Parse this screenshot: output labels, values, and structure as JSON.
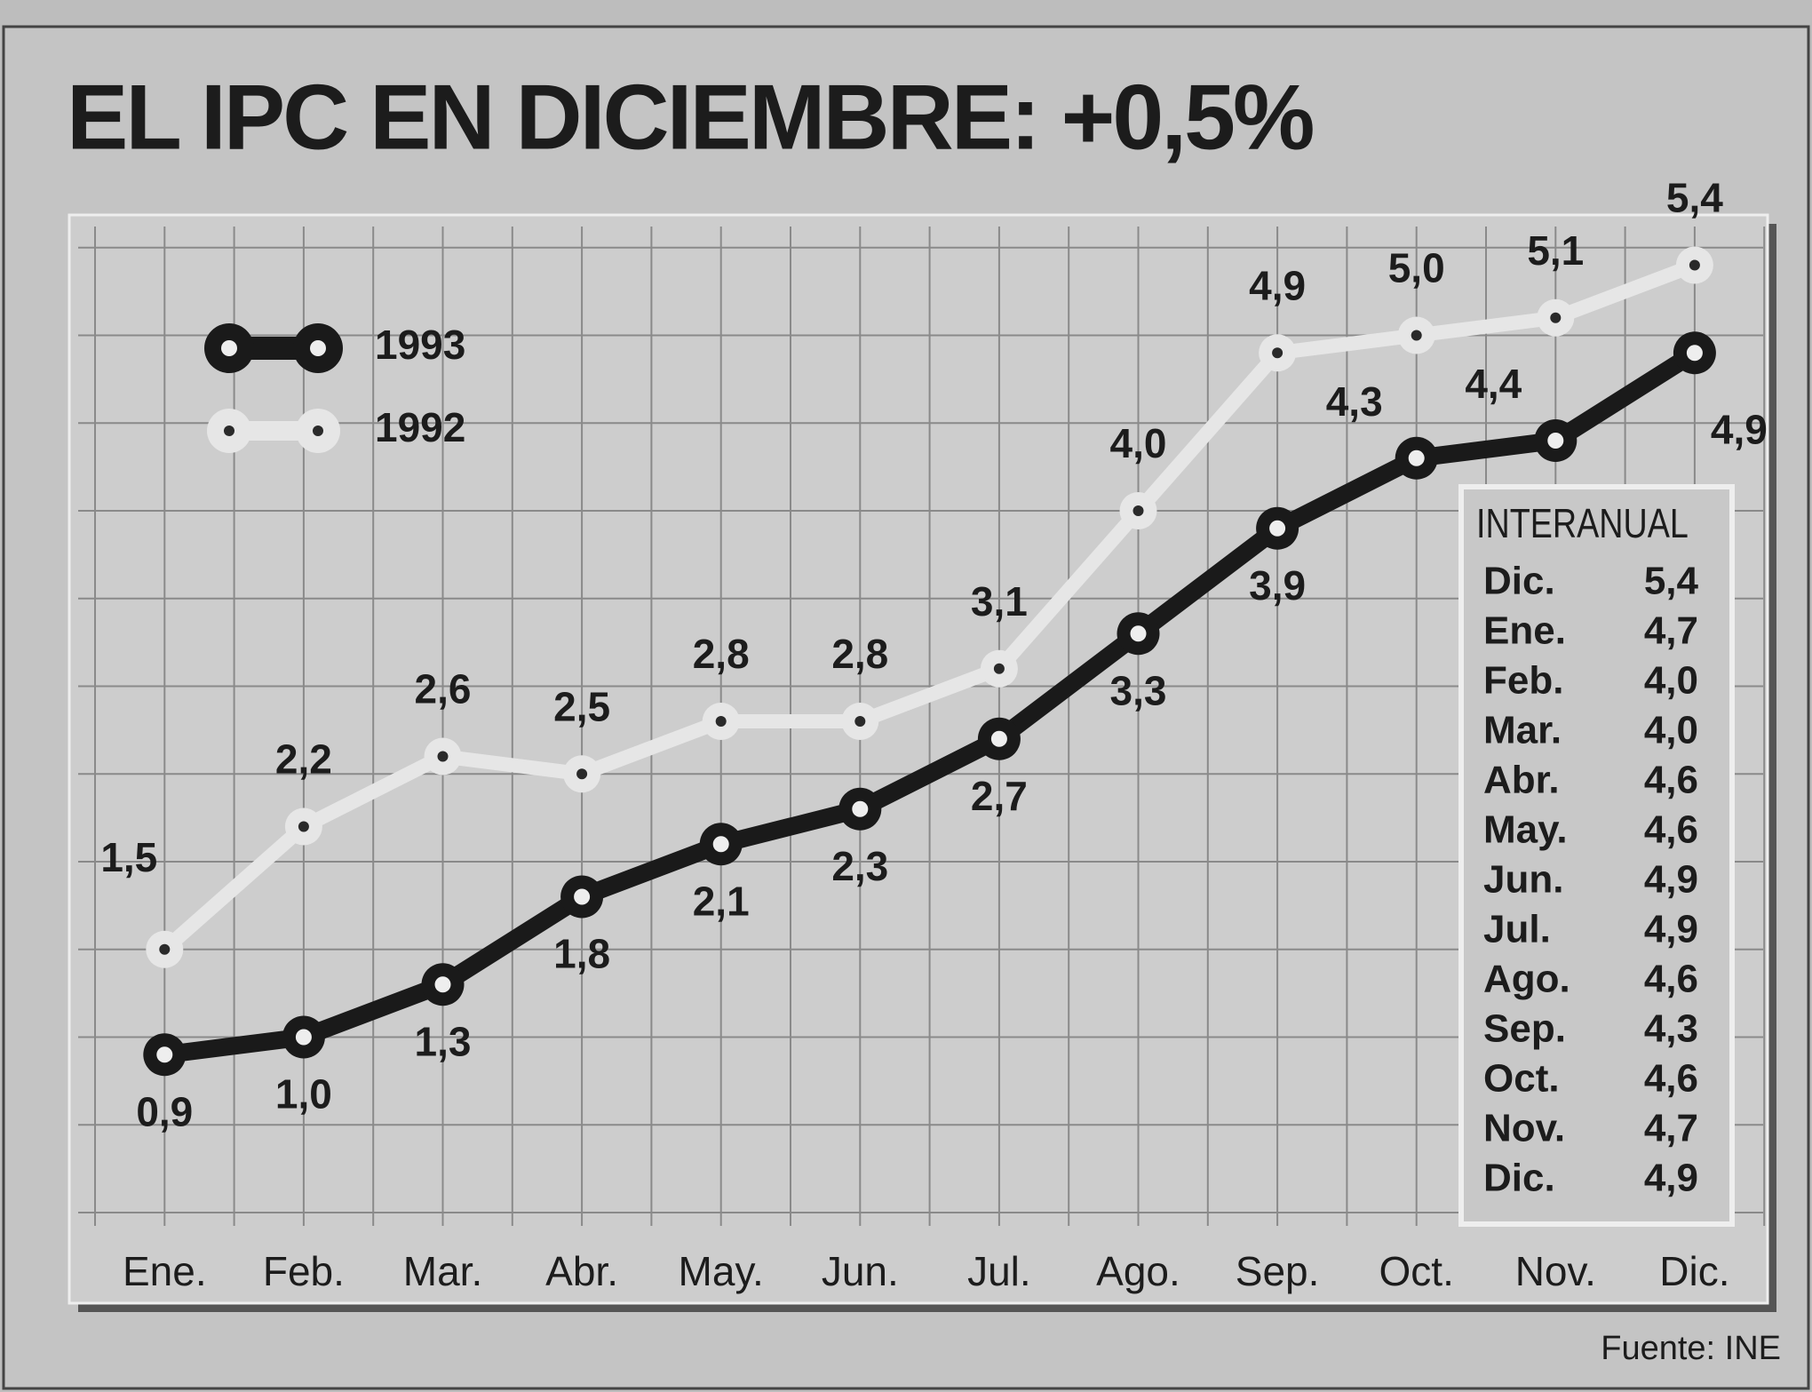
{
  "chart_data": {
    "type": "line",
    "title": "EL IPC EN DICIEMBRE: +0,5%",
    "categories": [
      "Ene.",
      "Feb.",
      "Mar.",
      "Abr.",
      "May.",
      "Jun.",
      "Jul.",
      "Ago.",
      "Sep.",
      "Oct.",
      "Nov.",
      "Dic."
    ],
    "series": [
      {
        "name": "1993",
        "color": "#1a1a1a",
        "values": [
          0.9,
          1.0,
          1.3,
          1.8,
          2.1,
          2.3,
          2.7,
          3.3,
          3.9,
          4.3,
          4.4,
          4.9
        ],
        "value_labels": [
          "0,9",
          "1,0",
          "1,3",
          "1,8",
          "2,1",
          "2,3",
          "2,7",
          "3,3",
          "3,9",
          "4,3",
          "4,4",
          "4,9"
        ]
      },
      {
        "name": "1992",
        "color": "#e6e6e6",
        "values": [
          1.5,
          2.2,
          2.6,
          2.5,
          2.8,
          2.8,
          3.1,
          4.0,
          4.9,
          5.0,
          5.1,
          5.4
        ],
        "value_labels": [
          "1,5",
          "2,2",
          "2,6",
          "2,5",
          "2,8",
          "2,8",
          "3,1",
          "4,0",
          "4,9",
          "5,0",
          "5,1",
          "5,4"
        ]
      }
    ],
    "ylim": [
      0,
      5.6
    ],
    "yticks": [
      0,
      0.5,
      1,
      1.5,
      2,
      2.5,
      3,
      3.5,
      4,
      4.5,
      5,
      5.5
    ],
    "grid": true,
    "legend": "upper left",
    "inset_table": {
      "title": "INTERANUAL",
      "rows": [
        [
          "Dic.",
          "5,4"
        ],
        [
          "Ene.",
          "4,7"
        ],
        [
          "Feb.",
          "4,0"
        ],
        [
          "Mar.",
          "4,0"
        ],
        [
          "Abr.",
          "4,6"
        ],
        [
          "May.",
          "4,6"
        ],
        [
          "Jun.",
          "4,9"
        ],
        [
          "Jul.",
          "4,9"
        ],
        [
          "Ago.",
          "4,6"
        ],
        [
          "Sep.",
          "4,3"
        ],
        [
          "Oct.",
          "4,6"
        ],
        [
          "Nov.",
          "4,7"
        ],
        [
          "Dic.",
          "4,9"
        ]
      ]
    },
    "source": "Fuente: INE"
  }
}
